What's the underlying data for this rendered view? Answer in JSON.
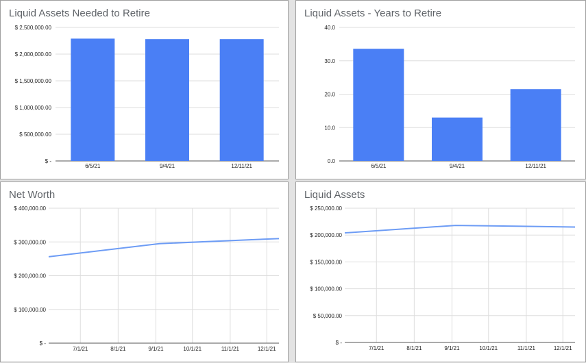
{
  "chart_data": [
    {
      "id": "c1",
      "type": "bar",
      "title": "Liquid Assets Needed to Retire",
      "categories": [
        "6/5/21",
        "9/4/21",
        "12/11/21"
      ],
      "values": [
        2290000,
        2280000,
        2280000
      ],
      "ylim": [
        0,
        2500000
      ],
      "yticks": [
        0,
        500000,
        1000000,
        1500000,
        2000000,
        2500000
      ],
      "ytick_labels": [
        "$ -",
        "$ 500,000.00",
        "$ 1,000,000.00",
        "$ 1,500,000.00",
        "$ 2,000,000.00",
        "$ 2,500,000.00"
      ],
      "grid": true,
      "color": "#4a7ff5"
    },
    {
      "id": "c2",
      "type": "bar",
      "title": "Liquid Assets - Years to Retire",
      "categories": [
        "6/5/21",
        "9/4/21",
        "12/11/21"
      ],
      "values": [
        33.6,
        13.0,
        21.5
      ],
      "ylim": [
        0,
        40
      ],
      "yticks": [
        0,
        10,
        20,
        30,
        40
      ],
      "ytick_labels": [
        "0.0",
        "10.0",
        "20.0",
        "30.0",
        "40.0"
      ],
      "grid": true,
      "color": "#4a7ff5"
    },
    {
      "id": "c3",
      "type": "line",
      "title": "Net Worth",
      "x": [
        "6/5/21",
        "9/4/21",
        "12/11/21"
      ],
      "values": [
        256000,
        295000,
        310000
      ],
      "x_days": [
        0,
        91,
        189
      ],
      "x_range_days": [
        0,
        189
      ],
      "xticks_days": [
        26,
        57,
        88,
        118,
        149,
        179
      ],
      "xtick_labels": [
        "7/1/21",
        "8/1/21",
        "9/1/21",
        "10/1/21",
        "11/1/21",
        "12/1/21"
      ],
      "ylim": [
        0,
        400000
      ],
      "yticks": [
        0,
        100000,
        200000,
        300000,
        400000
      ],
      "ytick_labels": [
        "$ -",
        "$ 100,000.00",
        "$ 200,000.00",
        "$ 300,000.00",
        "$ 400,000.00"
      ],
      "grid": true,
      "color": "#6d9cf5"
    },
    {
      "id": "c4",
      "type": "line",
      "title": "Liquid Assets",
      "x": [
        "6/5/21",
        "9/4/21",
        "12/11/21"
      ],
      "values": [
        204000,
        218000,
        215000
      ],
      "x_days": [
        0,
        91,
        189
      ],
      "x_range_days": [
        0,
        189
      ],
      "xticks_days": [
        26,
        57,
        88,
        118,
        149,
        179
      ],
      "xtick_labels": [
        "7/1/21",
        "8/1/21",
        "9/1/21",
        "10/1/21",
        "11/1/21",
        "12/1/21"
      ],
      "ylim": [
        0,
        250000
      ],
      "yticks": [
        0,
        50000,
        100000,
        150000,
        200000,
        250000
      ],
      "ytick_labels": [
        "$ -",
        "$ 50,000.00",
        "$ 100,000.00",
        "$ 150,000.00",
        "$ 200,000.00",
        "$ 250,000.00"
      ],
      "grid": true,
      "color": "#6d9cf5"
    }
  ]
}
